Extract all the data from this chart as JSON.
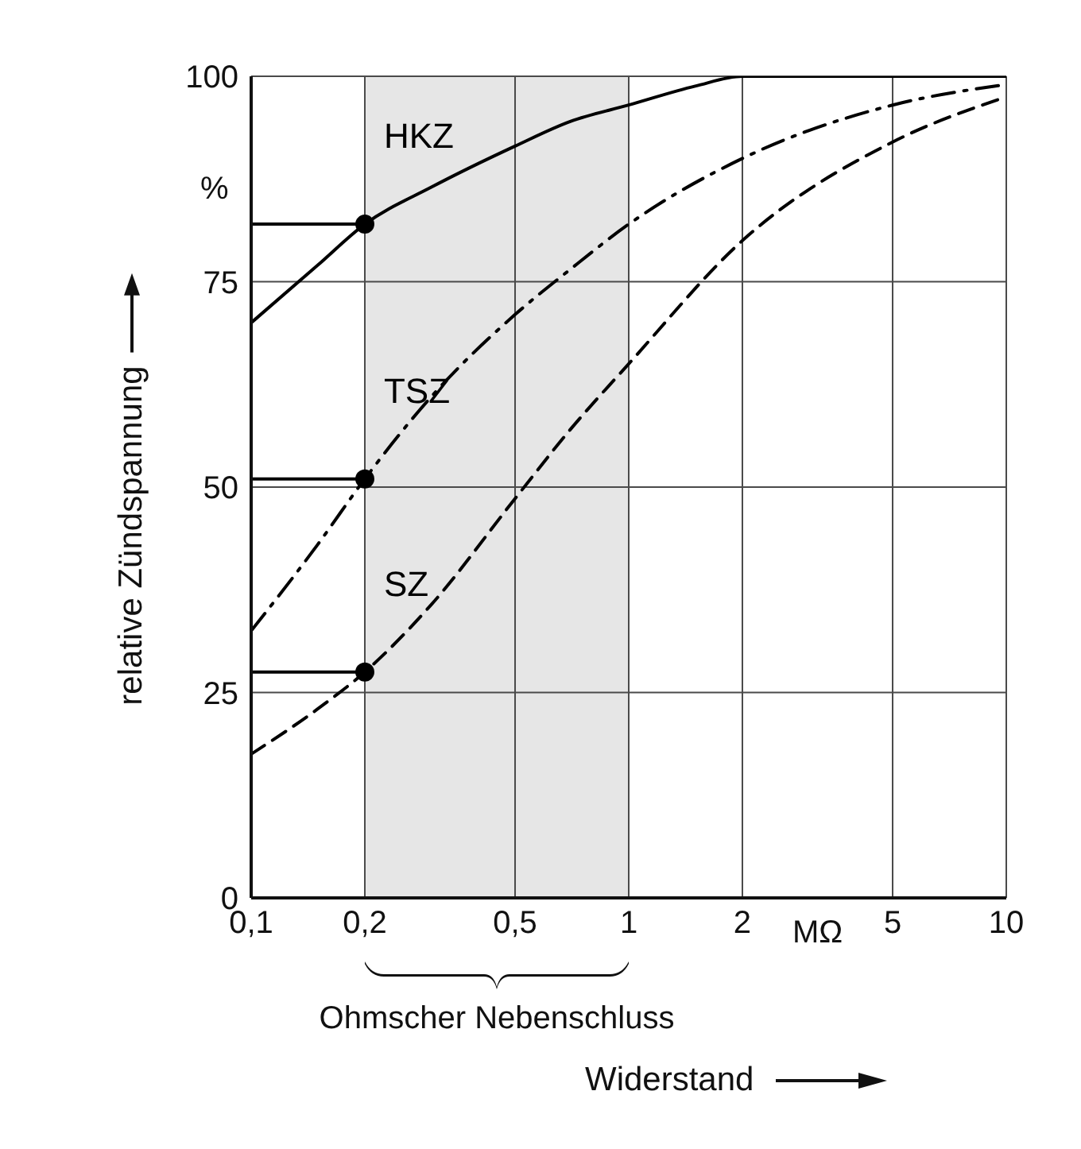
{
  "chart_data": {
    "type": "line",
    "xlabel": "Widerstand",
    "ylabel": "relative Zündspannung",
    "log": "x",
    "xlim": [
      0.1,
      10
    ],
    "xticks": [
      {
        "value": 0.1,
        "label": "0,1"
      },
      {
        "value": 0.2,
        "label": "0,2"
      },
      {
        "value": 0.5,
        "label": "0,5"
      },
      1,
      2,
      5,
      10
    ],
    "ylim": [
      0,
      100
    ],
    "yticks": [
      0,
      25,
      50,
      75,
      100
    ],
    "grid": true,
    "bands": [
      {
        "axis": "x",
        "from": 0.2,
        "to": 1,
        "color": "#e6e6e6"
      }
    ],
    "annotations": [
      "%",
      "MΩ",
      "Ohmscher Nebenschluss"
    ],
    "series": [
      {
        "name": "HKZ",
        "color": "#000000",
        "line_style": "solid",
        "marker": "none",
        "x": [
          0.1,
          0.15,
          0.2,
          0.3,
          0.5,
          0.7,
          1,
          1.5,
          2,
          5,
          10
        ],
        "values": [
          70,
          77,
          82,
          86.5,
          91.5,
          94.5,
          96.5,
          98.8,
          100,
          100,
          100
        ]
      },
      {
        "name": "TSZ",
        "color": "#000000",
        "line_style": "dashdot",
        "marker": "none",
        "x": [
          0.1,
          0.15,
          0.2,
          0.3,
          0.5,
          0.7,
          1,
          2,
          5,
          10
        ],
        "values": [
          32.5,
          43,
          51,
          61,
          71,
          76.5,
          82,
          90,
          96.5,
          99
        ]
      },
      {
        "name": "SZ",
        "color": "#000000",
        "line_style": "dashed",
        "marker": "none",
        "x": [
          0.1,
          0.15,
          0.2,
          0.3,
          0.5,
          0.7,
          1,
          2,
          5,
          10
        ],
        "values": [
          17.5,
          23,
          27.5,
          35.7,
          48.6,
          57,
          65,
          80,
          92,
          97.5
        ]
      },
      {
        "color": "#000000",
        "line_style": "solid",
        "marker": "none",
        "x": [
          0.1,
          0.2
        ],
        "values": [
          82,
          82
        ]
      },
      {
        "color": "#000000",
        "line_style": "solid",
        "marker": "none",
        "x": [
          0.1,
          0.2
        ],
        "values": [
          51,
          51
        ]
      },
      {
        "color": "#000000",
        "line_style": "solid",
        "marker": "none",
        "x": [
          0.1,
          0.2
        ],
        "values": [
          27.5,
          27.5
        ]
      },
      {
        "type": "scatter",
        "color": "#000000",
        "marker": "circle",
        "x": [
          0.2,
          0.2,
          0.2
        ],
        "values": [
          82,
          51,
          27.5
        ]
      }
    ]
  }
}
